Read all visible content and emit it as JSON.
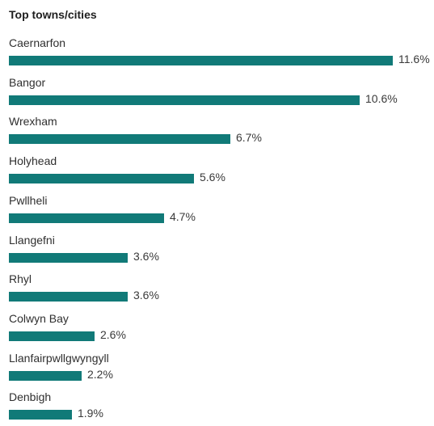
{
  "chart_data": {
    "type": "bar",
    "orientation": "horizontal",
    "title": "Top towns/cities",
    "categories": [
      "Caernarfon",
      "Bangor",
      "Wrexham",
      "Holyhead",
      "Pwllheli",
      "Llangefni",
      "Rhyl",
      "Colwyn Bay",
      "Llanfairpwllgwyngyll",
      "Denbigh"
    ],
    "values": [
      11.6,
      10.6,
      6.7,
      5.6,
      4.7,
      3.6,
      3.6,
      2.6,
      2.2,
      1.9
    ],
    "value_labels": [
      "11.6%",
      "10.6%",
      "6.7%",
      "5.6%",
      "4.7%",
      "3.6%",
      "3.6%",
      "2.6%",
      "2.2%",
      "1.9%"
    ],
    "xlabel": "",
    "ylabel": "",
    "xlim": [
      0,
      11.6
    ],
    "grid": false,
    "bar_color": "#117a78"
  }
}
